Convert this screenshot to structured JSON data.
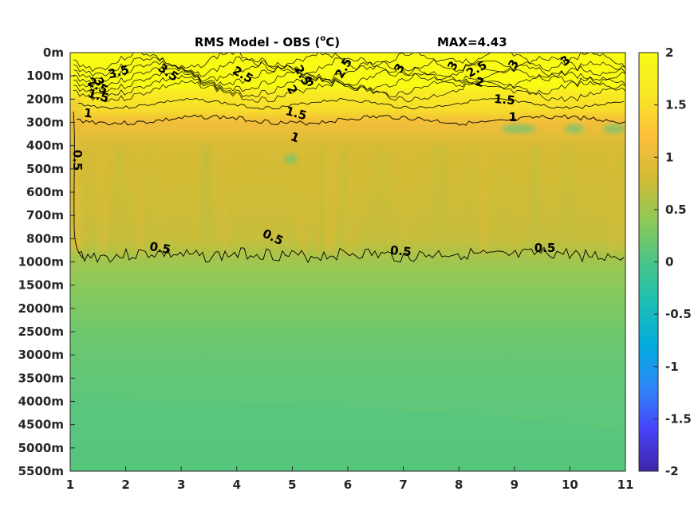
{
  "chart_data": {
    "type": "heatmap",
    "title": "RMS Model - OBS (°C)",
    "title_prefix": "RMS Model - OBS (",
    "title_sup": "o",
    "title_suffix": "C)",
    "max_label": "MAX=4.43",
    "x_ticks": [
      "1",
      "2",
      "3",
      "4",
      "5",
      "6",
      "7",
      "8",
      "9",
      "10",
      "11"
    ],
    "x_range": [
      1,
      11
    ],
    "y_ticks": [
      "0m",
      "100m",
      "200m",
      "300m",
      "400m",
      "500m",
      "600m",
      "700m",
      "800m",
      "1000m",
      "1500m",
      "2000m",
      "2500m",
      "3000m",
      "3500m",
      "4000m",
      "4500m",
      "5000m",
      "5500m"
    ],
    "colorbar": {
      "range": [
        -2,
        2
      ],
      "ticks": [
        "2",
        "1.5",
        "1",
        "0.5",
        "0",
        "-0.5",
        "-1",
        "-1.5",
        "-2"
      ],
      "colormap": [
        "#3e26a8",
        "#4743f8",
        "#2e87f7",
        "#03acdd",
        "#1cbeb6",
        "#4ac687",
        "#8ec958",
        "#d3bb35",
        "#febf3b",
        "#f7e726",
        "#f9fb15"
      ]
    },
    "depth_profile": [
      {
        "depth": "0m",
        "value": 2.3
      },
      {
        "depth": "100m",
        "value": 2.2
      },
      {
        "depth": "200m",
        "value": 1.7
      },
      {
        "depth": "300m",
        "value": 1.1
      },
      {
        "depth": "400m",
        "value": 0.85
      },
      {
        "depth": "500m",
        "value": 0.8
      },
      {
        "depth": "600m",
        "value": 0.78
      },
      {
        "depth": "700m",
        "value": 0.76
      },
      {
        "depth": "800m",
        "value": 0.72
      },
      {
        "depth": "1000m",
        "value": 0.5
      },
      {
        "depth": "1500m",
        "value": 0.38
      },
      {
        "depth": "2000m",
        "value": 0.3
      },
      {
        "depth": "2500m",
        "value": 0.22
      },
      {
        "depth": "3000m",
        "value": 0.17
      },
      {
        "depth": "3500m",
        "value": 0.14
      },
      {
        "depth": "4000m",
        "value": 0.12
      },
      {
        "depth": "4500m",
        "value": 0.11
      },
      {
        "depth": "5000m",
        "value": 0.1
      },
      {
        "depth": "5500m",
        "value": 0.1
      }
    ],
    "contour_labels": [
      "3.5",
      "3.5",
      "3",
      "2.5",
      "1.5",
      "2.5",
      "3",
      "2.5",
      "2",
      "2.5",
      "1.5",
      "1",
      "3",
      "3",
      "2.5",
      "2",
      "3",
      "3",
      "1.5",
      "1",
      "0.5",
      "0.5",
      "0.5",
      "0.5",
      "0.5",
      "1"
    ]
  }
}
